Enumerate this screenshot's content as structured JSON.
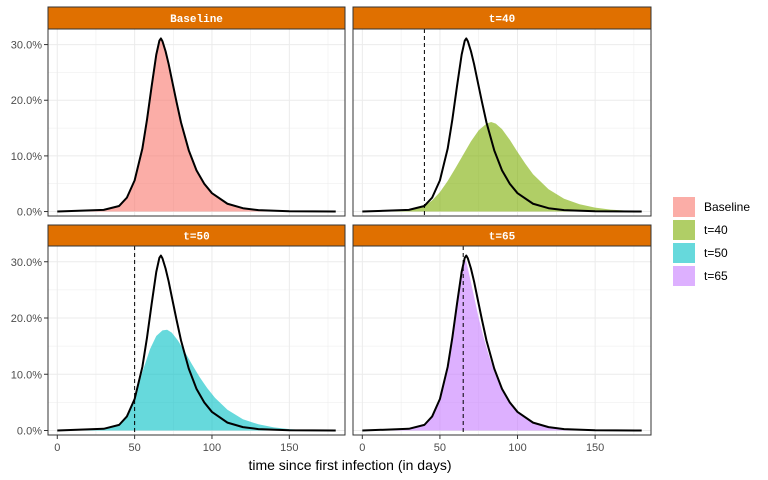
{
  "chart_data": {
    "type": "area",
    "xlabel": "time since first infection (in days)",
    "ylabel": "",
    "xlim": [
      -6,
      186
    ],
    "ylim": [
      -0.8,
      32.8
    ],
    "x_ticks": [
      0,
      50,
      100,
      150
    ],
    "x_tick_labels": [
      "0",
      "50",
      "100",
      "150"
    ],
    "y_ticks": [
      0,
      10,
      20,
      30
    ],
    "y_tick_labels": [
      "0.0%",
      "10.0%",
      "20.0%",
      "30.0%"
    ],
    "grid": true,
    "strip_color": "#E07000",
    "legend": {
      "placement": "right",
      "entries": [
        {
          "name": "Baseline",
          "color": "#F8766D"
        },
        {
          "name": "t=40",
          "color": "#7CAE00"
        },
        {
          "name": "t=50",
          "color": "#00BFC4"
        },
        {
          "name": "t=65",
          "color": "#C77CFF"
        }
      ]
    },
    "baseline_curve": {
      "color": "#000000",
      "x": [
        0,
        30,
        40,
        45,
        50,
        55,
        58,
        61,
        64,
        66,
        67,
        68,
        70,
        72,
        74,
        77,
        80,
        85,
        90,
        95,
        100,
        110,
        120,
        130,
        150,
        180
      ],
      "y": [
        0,
        0.3,
        1.0,
        2.5,
        5.6,
        11.3,
        16.5,
        22.5,
        28.2,
        30.7,
        31.1,
        30.6,
        28.8,
        26.5,
        23.8,
        19.8,
        16.0,
        11.0,
        7.4,
        5.0,
        3.3,
        1.4,
        0.6,
        0.25,
        0.05,
        0
      ]
    },
    "panels": [
      {
        "strip": "Baseline",
        "series": "Baseline",
        "color": "#F8766D",
        "vline": null,
        "x": [
          0,
          30,
          40,
          45,
          50,
          55,
          58,
          61,
          64,
          66,
          67,
          68,
          70,
          72,
          74,
          77,
          80,
          85,
          90,
          95,
          100,
          110,
          120,
          130,
          150,
          180
        ],
        "y": [
          0,
          0.3,
          1.0,
          2.5,
          5.6,
          11.3,
          16.5,
          22.5,
          28.2,
          30.7,
          31.1,
          30.6,
          28.8,
          26.5,
          23.8,
          19.8,
          16.0,
          11.0,
          7.4,
          5.0,
          3.3,
          1.4,
          0.6,
          0.25,
          0.05,
          0
        ]
      },
      {
        "strip": "t=40",
        "series": "t=40",
        "color": "#7CAE00",
        "vline": 40,
        "x": [
          0,
          30,
          40,
          45,
          50,
          55,
          60,
          65,
          70,
          75,
          80,
          83,
          86,
          90,
          95,
          100,
          105,
          110,
          120,
          130,
          140,
          150,
          160,
          180
        ],
        "y": [
          0,
          0.3,
          1.0,
          2.0,
          3.5,
          5.5,
          7.8,
          10.2,
          12.6,
          14.6,
          15.8,
          16.1,
          15.8,
          14.8,
          12.9,
          10.7,
          8.6,
          6.7,
          4.0,
          2.3,
          1.3,
          0.7,
          0.35,
          0
        ]
      },
      {
        "strip": "t=50",
        "series": "t=50",
        "color": "#00BFC4",
        "vline": 50,
        "x": [
          0,
          30,
          40,
          45,
          50,
          55,
          60,
          64,
          68,
          71,
          74,
          78,
          82,
          87,
          92,
          97,
          102,
          110,
          120,
          130,
          140,
          150,
          160,
          180
        ],
        "y": [
          0,
          0.3,
          1.0,
          2.5,
          5.6,
          10.4,
          14.5,
          16.8,
          17.8,
          17.9,
          17.4,
          16.0,
          14.2,
          11.8,
          9.5,
          7.5,
          5.8,
          3.7,
          2.0,
          1.1,
          0.55,
          0.25,
          0.1,
          0
        ]
      },
      {
        "strip": "t=65",
        "series": "t=65",
        "color": "#C77CFF",
        "vline": 65,
        "x": [
          0,
          30,
          40,
          45,
          50,
          55,
          58,
          61,
          64,
          65,
          66,
          67,
          69,
          72,
          75,
          78,
          81,
          85,
          90,
          95,
          100,
          110,
          120,
          130,
          150,
          180
        ],
        "y": [
          0,
          0.3,
          1.0,
          2.5,
          5.6,
          11.3,
          16.5,
          22.5,
          28.2,
          29.9,
          30.4,
          30.0,
          27.6,
          23.8,
          20.0,
          16.7,
          13.8,
          10.5,
          7.3,
          5.0,
          3.3,
          1.4,
          0.6,
          0.25,
          0.05,
          0
        ]
      }
    ]
  }
}
